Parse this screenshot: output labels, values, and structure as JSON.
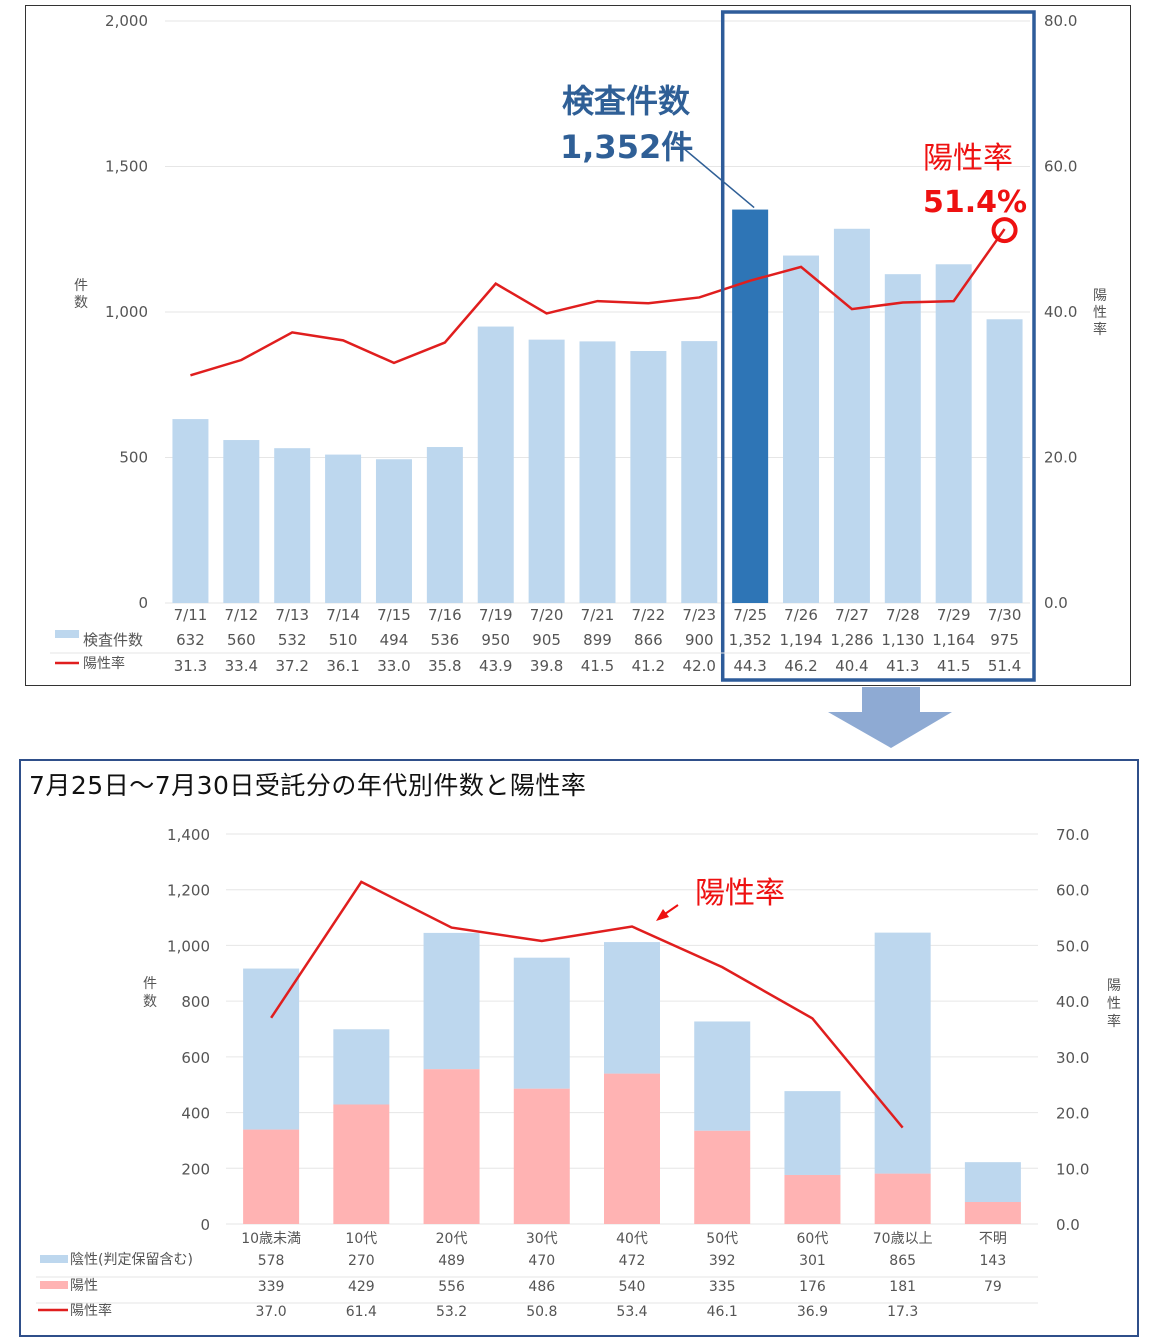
{
  "chart_data": [
    {
      "type": "bar",
      "categories": [
        "7/11",
        "7/12",
        "7/13",
        "7/14",
        "7/15",
        "7/16",
        "7/19",
        "7/20",
        "7/21",
        "7/22",
        "7/23",
        "7/25",
        "7/26",
        "7/27",
        "7/28",
        "7/29",
        "7/30"
      ],
      "series": [
        {
          "name": "検査件数",
          "type": "bar",
          "values": [
            632,
            560,
            532,
            510,
            494,
            536,
            950,
            905,
            899,
            866,
            900,
            1352,
            1194,
            1286,
            1130,
            1164,
            975
          ]
        },
        {
          "name": "陽性率",
          "type": "line",
          "axis": "right",
          "values": [
            31.3,
            33.4,
            37.2,
            36.1,
            33.0,
            35.8,
            43.9,
            39.8,
            41.5,
            41.2,
            42.0,
            44.3,
            46.2,
            40.4,
            41.3,
            41.5,
            51.4
          ]
        }
      ],
      "table_values": {
        "検査件数": [
          "632",
          "560",
          "532",
          "510",
          "494",
          "536",
          "950",
          "905",
          "899",
          "866",
          "900",
          "1,352",
          "1,194",
          "1,286",
          "1,130",
          "1,164",
          "975"
        ],
        "陽性率": [
          "31.3",
          "33.4",
          "37.2",
          "36.1",
          "33.0",
          "35.8",
          "43.9",
          "39.8",
          "41.5",
          "41.2",
          "42.0",
          "44.3",
          "46.2",
          "40.4",
          "41.3",
          "41.5",
          "51.4"
        ]
      },
      "ylabel": "件\n数",
      "y2label": "陽\n性\n率",
      "ylim": [
        0,
        2000
      ],
      "y2lim": [
        0,
        80
      ],
      "yticks": [
        "0",
        "500",
        "1,000",
        "1,500",
        "2,000"
      ],
      "y2ticks": [
        "0.0",
        "20.0",
        "40.0",
        "60.0",
        "80.0"
      ],
      "highlight_index": 11,
      "highlight_range": [
        11,
        16
      ],
      "annotations": {
        "bar_title": "検査件数",
        "bar_value": "1,352件",
        "rate_title": "陽性率",
        "rate_value": "51.4%"
      },
      "colors": {
        "bar": "#bdd7ee",
        "bar_highlight": "#2e75b6",
        "line": "#e01e1e",
        "highlight_box": "#2e5c9a"
      }
    },
    {
      "type": "bar",
      "title": "7月25日～7月30日受託分の年代別件数と陽性率",
      "stacked": true,
      "categories": [
        "10歳未満",
        "10代",
        "20代",
        "30代",
        "40代",
        "50代",
        "60代",
        "70歳以上",
        "不明"
      ],
      "series": [
        {
          "name": "陽性",
          "type": "bar",
          "values": [
            339,
            429,
            556,
            486,
            540,
            335,
            176,
            181,
            79
          ]
        },
        {
          "name": "陰性(判定保留含む)",
          "type": "bar",
          "values": [
            578,
            270,
            489,
            470,
            472,
            392,
            301,
            865,
            143
          ]
        },
        {
          "name": "陽性率",
          "type": "line",
          "axis": "right",
          "values": [
            37.0,
            61.4,
            53.2,
            50.8,
            53.4,
            46.1,
            36.9,
            17.3,
            null
          ]
        }
      ],
      "table_values": {
        "陰性(判定保留含む)": [
          "578",
          "270",
          "489",
          "470",
          "472",
          "392",
          "301",
          "865",
          "143"
        ],
        "陽性": [
          "339",
          "429",
          "556",
          "486",
          "540",
          "335",
          "176",
          "181",
          "79"
        ],
        "陽性率": [
          "37.0",
          "61.4",
          "53.2",
          "50.8",
          "53.4",
          "46.1",
          "36.9",
          "17.3",
          ""
        ]
      },
      "ylabel": "件\n数",
      "y2label": "陽\n性\n率",
      "ylim": [
        0,
        1400
      ],
      "y2lim": [
        0,
        70
      ],
      "yticks": [
        "0",
        "200",
        "400",
        "600",
        "800",
        "1,000",
        "1,200",
        "1,400"
      ],
      "y2ticks": [
        "0.0",
        "10.0",
        "20.0",
        "30.0",
        "40.0",
        "50.0",
        "60.0",
        "70.0"
      ],
      "annotations": {
        "rate_title": "陽性率"
      },
      "colors": {
        "negative": "#bdd7ee",
        "positive": "#ffb3b3",
        "line": "#e01e1e"
      }
    }
  ]
}
